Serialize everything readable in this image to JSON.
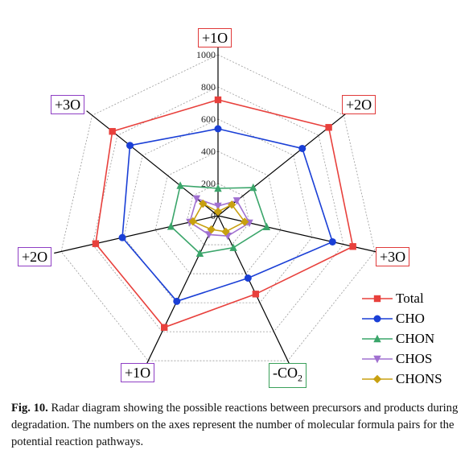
{
  "chart_data": {
    "type": "radar",
    "axes": [
      "+1O",
      "+2O",
      "+3O",
      "-CO2",
      "+1O",
      "+2O",
      "+3O"
    ],
    "axis_labels_display": [
      {
        "text": "+1O",
        "sub": ""
      },
      {
        "text": "+2O",
        "sub": ""
      },
      {
        "text": "+3O",
        "sub": ""
      },
      {
        "text": "-CO",
        "sub": "2"
      },
      {
        "text": "+1O",
        "sub": ""
      },
      {
        "text": "+2O",
        "sub": ""
      },
      {
        "text": "+3O",
        "sub": ""
      }
    ],
    "axis_box_colors": [
      "#e03a3a",
      "#e03a3a",
      "#e03a3a",
      "#3aa05a",
      "#8f3fc4",
      "#8f3fc4",
      "#8f3fc4"
    ],
    "radial_range": [
      0,
      1000
    ],
    "radial_ticks": [
      "0",
      "200",
      "400",
      "600",
      "800",
      "1000"
    ],
    "grid": true,
    "legend_position": "bottom-right",
    "series": [
      {
        "name": "Total",
        "color": "#e8403c",
        "marker": "square",
        "values": [
          720,
          880,
          860,
          540,
          770,
          780,
          840
        ]
      },
      {
        "name": "CHO",
        "color": "#1a3fd6",
        "marker": "circle",
        "values": [
          540,
          670,
          730,
          430,
          590,
          610,
          700
        ]
      },
      {
        "name": "CHON",
        "color": "#3aa56a",
        "marker": "triangle-up",
        "values": [
          170,
          280,
          310,
          220,
          260,
          300,
          300
        ]
      },
      {
        "name": "CHOS",
        "color": "#a070d0",
        "marker": "triangle-down",
        "values": [
          60,
          150,
          200,
          140,
          130,
          180,
          170
        ]
      },
      {
        "name": "CHONS",
        "color": "#c8a010",
        "marker": "diamond",
        "values": [
          25,
          110,
          170,
          110,
          95,
          160,
          120
        ]
      }
    ]
  },
  "caption": {
    "label": "Fig. 10.",
    "text": "Radar diagram showing the possible reactions between precursors and products during degradation. The numbers on the axes represent the number of molecular formula pairs for the potential reaction pathways."
  }
}
